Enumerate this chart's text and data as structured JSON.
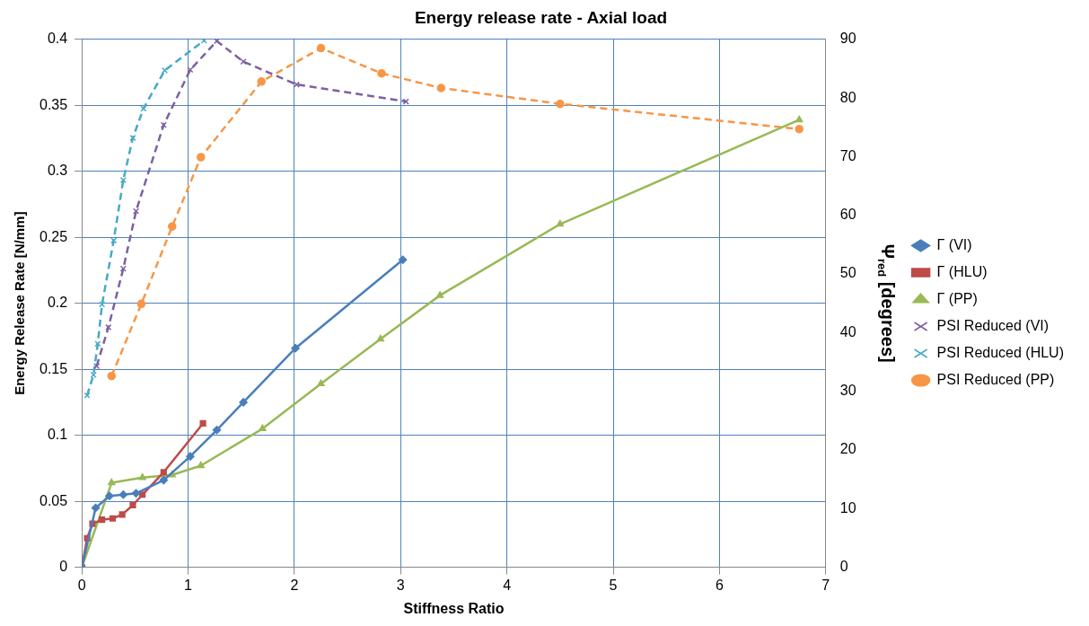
{
  "chart_data": {
    "type": "line",
    "title": "Energy release rate - Axial load",
    "xlabel": "Stiffness Ratio",
    "ylabel": "Energy Release Rate [N/mm]",
    "y2label": "Ψ$_{red}$ [degrees]",
    "xlim": [
      0,
      7
    ],
    "xticks": [
      0,
      1,
      2,
      3,
      4,
      5,
      6,
      7
    ],
    "ylim": [
      0,
      0.4
    ],
    "yticks": [
      0,
      0.05,
      0.1,
      0.15,
      0.2,
      0.25,
      0.3,
      0.35,
      0.4
    ],
    "y2lim": [
      0,
      90
    ],
    "y2ticks": [
      0,
      10,
      20,
      30,
      40,
      50,
      60,
      70,
      80,
      90
    ],
    "grid": true,
    "legend": "right",
    "series": [
      {
        "name": "Γ (VI)",
        "color": "#4a7ebb",
        "marker": "diamond",
        "line_style": "solid",
        "x": [
          0,
          0.13,
          0.26,
          0.39,
          0.51,
          0.77,
          1.02,
          1.27,
          1.52,
          2.01,
          3.02
        ],
        "values": [
          0,
          0.045,
          0.054,
          0.055,
          0.056,
          0.066,
          0.084,
          0.104,
          0.125,
          0.166,
          0.233
        ]
      },
      {
        "name": "Γ (HLU)",
        "color": "#be4b48",
        "marker": "square",
        "line_style": "solid",
        "x": [
          0,
          0.05,
          0.1,
          0.19,
          0.29,
          0.38,
          0.48,
          0.57,
          0.77,
          1.14
        ],
        "values": [
          0,
          0.022,
          0.033,
          0.036,
          0.037,
          0.04,
          0.047,
          0.055,
          0.072,
          0.109
        ]
      },
      {
        "name": "Γ (PP)",
        "color": "#98b954",
        "marker": "triangle",
        "line_style": "solid",
        "x": [
          0,
          0.28,
          0.57,
          0.85,
          1.12,
          1.7,
          2.25,
          2.81,
          3.37,
          4.5,
          6.75
        ],
        "values": [
          0,
          0.064,
          0.068,
          0.07,
          0.077,
          0.105,
          0.139,
          0.173,
          0.206,
          0.26,
          0.339
        ]
      },
      {
        "name": "PSI Reduced (VI)",
        "color": "#7d60a0",
        "marker": "cross",
        "line_style": "dashed",
        "axis": "y2",
        "x": [
          0.14,
          0.25,
          0.39,
          0.51,
          0.77,
          1.02,
          1.27,
          1.52,
          2.02,
          3.05
        ],
        "values": [
          34.3,
          40.9,
          50.9,
          60.7,
          75.4,
          84.8,
          89.7,
          86.2,
          82.3,
          79.4
        ]
      },
      {
        "name": "PSI Reduced (HLU)",
        "color": "#46aac5",
        "marker": "cross",
        "line_style": "dashed",
        "axis": "y2",
        "x": [
          0.05,
          0.11,
          0.15,
          0.19,
          0.3,
          0.39,
          0.48,
          0.58,
          0.78,
          1.15
        ],
        "values": [
          29.3,
          32.8,
          38.1,
          44.8,
          55.7,
          66,
          73.2,
          78.2,
          84.7,
          89.8
        ]
      },
      {
        "name": "PSI Reduced (PP)",
        "color": "#f79646",
        "marker": "circle",
        "line_style": "dashed",
        "axis": "y2",
        "x": [
          0.28,
          0.56,
          0.85,
          1.12,
          1.69,
          2.25,
          2.82,
          3.38,
          4.5,
          6.75
        ],
        "values": [
          32.6,
          44.9,
          58.1,
          69.9,
          82.8,
          88.5,
          84.2,
          81.7,
          79,
          74.7
        ]
      }
    ]
  }
}
